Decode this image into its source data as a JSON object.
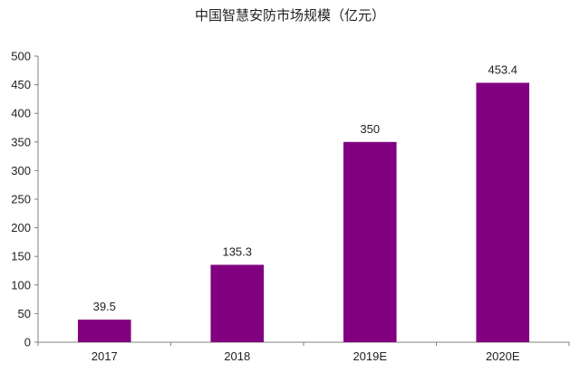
{
  "chart_data": {
    "type": "bar",
    "title": "中国智慧安防市场规模（亿元）",
    "xlabel": "",
    "ylabel": "",
    "categories": [
      "2017",
      "2018",
      "2019E",
      "2020E"
    ],
    "values": [
      39.5,
      135.3,
      350,
      453.4
    ],
    "data_labels": [
      "39.5",
      "135.3",
      "350",
      "453.4"
    ],
    "ylim": [
      0,
      500
    ],
    "yticks": [
      0,
      50,
      100,
      150,
      200,
      250,
      300,
      350,
      400,
      450,
      500
    ],
    "grid": false,
    "legend": "none",
    "bar_color": "#800080"
  }
}
